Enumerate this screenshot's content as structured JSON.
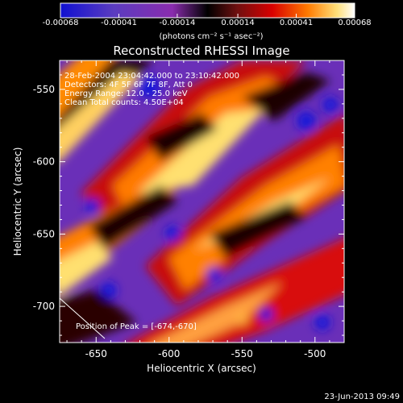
{
  "chart_data": {
    "type": "heatmap",
    "title": "Reconstructed RHESSI Image",
    "colorbar": {
      "ticks": [
        "-0.00068",
        "-0.00041",
        "-0.00014",
        "0.00014",
        "0.00041",
        "0.00068"
      ],
      "unit_label": "(photons cm⁻² s⁻¹ asec⁻²)",
      "range": [
        -0.00068,
        0.00068
      ],
      "colors": [
        "#1010d0",
        "#5a3cc0",
        "#8a2cae",
        "#000000",
        "#6e1010",
        "#d80000",
        "#ff7a00",
        "#ffe07a",
        "#ffffff"
      ]
    },
    "xlabel": "Heliocentric X (arcsec)",
    "ylabel": "Heliocentric Y (arcsec)",
    "x_ticks": [
      "-650",
      "-600",
      "-550",
      "-500"
    ],
    "y_ticks": [
      "-550",
      "-600",
      "-650",
      "-700"
    ],
    "xlim": [
      -675,
      -480
    ],
    "ylim": [
      -725,
      -530
    ],
    "annotations": [
      "28-Feb-2004 23:04:42.000 to 23:10:42.000",
      "Detectors: 4F 5F 6F 7F 8F, Att 0",
      "Energy Range: 12.0 - 25.0 keV",
      "Clean    Total counts: 4.50E+04"
    ],
    "peak_label": "Position of Peak = [-674,-670]",
    "timestamp": "23-Jun-2013 09:49"
  }
}
